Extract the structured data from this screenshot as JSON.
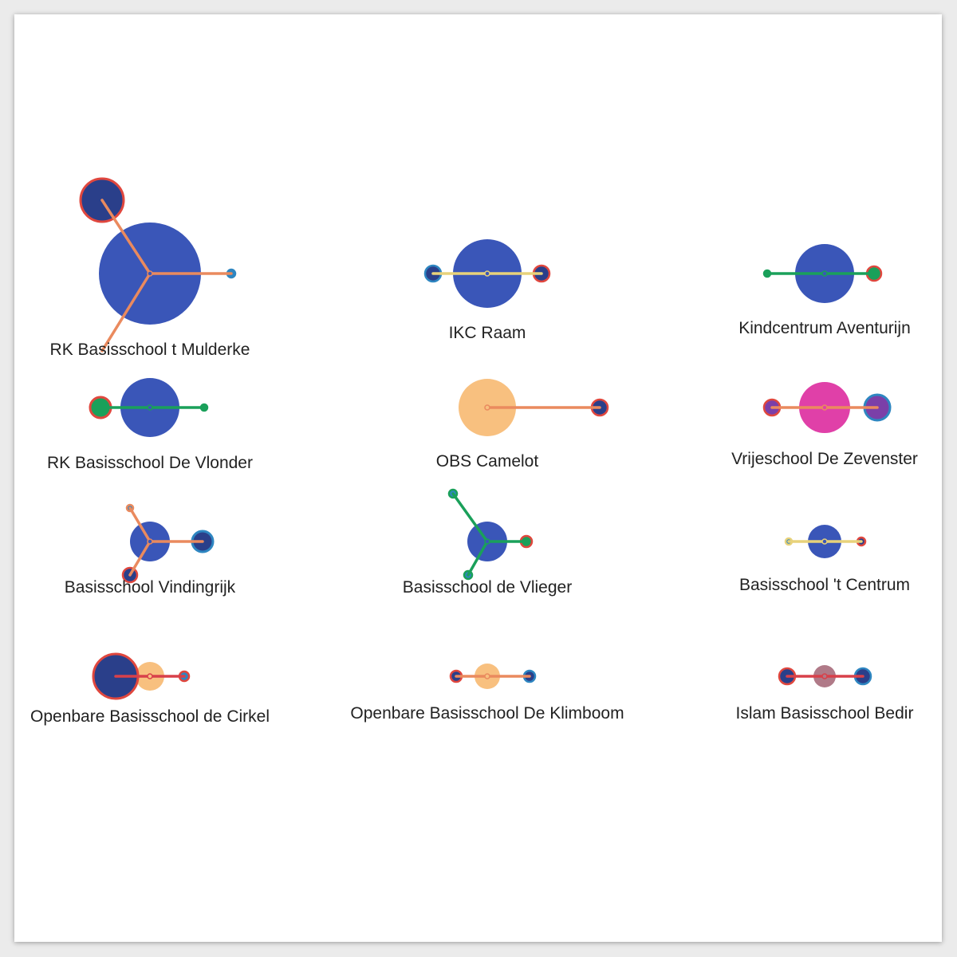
{
  "schools": [
    {
      "name": "RK Basisschool t Mulderke",
      "main_color": "#3a56b8",
      "nodes": [
        {
          "fill": "#2a3f8a",
          "stroke": "#e0473e",
          "edge": "#ea8a5e"
        },
        {
          "fill": "#2e86c1",
          "stroke": "#2e86c1",
          "edge": "#ea8a5e"
        },
        {
          "fill": "#3a56b8",
          "stroke": "#3a56b8",
          "edge": "#ea8a5e"
        }
      ]
    },
    {
      "name": "IKC Raam",
      "main_color": "#3a56b8",
      "nodes": [
        {
          "fill": "#2a3f8a",
          "stroke": "#2e86c1",
          "edge": "#e8d27a"
        },
        {
          "fill": "#2a3f8a",
          "stroke": "#e0473e",
          "edge": "#e8d27a"
        }
      ]
    },
    {
      "name": "Kindcentrum Aventurijn",
      "main_color": "#3a56b8",
      "nodes": [
        {
          "fill": "#1aa05a",
          "stroke": "#1aa05a",
          "edge": "#1aa05a"
        },
        {
          "fill": "#1aa05a",
          "stroke": "#e0473e",
          "edge": "#1aa05a"
        }
      ]
    },
    {
      "name": "RK Basisschool De Vlonder",
      "main_color": "#3a56b8",
      "nodes": [
        {
          "fill": "#1aa05a",
          "stroke": "#e0473e",
          "edge": "#1aa05a"
        },
        {
          "fill": "#1aa05a",
          "stroke": "#1aa05a",
          "edge": "#1aa05a"
        }
      ]
    },
    {
      "name": "OBS Camelot",
      "main_color": "#f8c07f",
      "nodes": [
        {
          "fill": "#2a3f8a",
          "stroke": "#e0473e",
          "edge": "#ea8a5e"
        }
      ]
    },
    {
      "name": "Vrijeschool De Zevenster",
      "main_color": "#e040a8",
      "nodes": [
        {
          "fill": "#7b3fa8",
          "stroke": "#e0473e",
          "edge": "#ea8a5e"
        },
        {
          "fill": "#7b3fa8",
          "stroke": "#2e86c1",
          "edge": "#ea8a5e"
        }
      ]
    },
    {
      "name": "Basisschool Vindingrijk",
      "main_color": "#3a56b8",
      "nodes": [
        {
          "fill": "#2e86c1",
          "stroke": "#ea8a5e",
          "edge": "#ea8a5e"
        },
        {
          "fill": "#2a3f8a",
          "stroke": "#2e86c1",
          "edge": "#ea8a5e"
        },
        {
          "fill": "#2a3f8a",
          "stroke": "#e0473e",
          "edge": "#ea8a5e"
        }
      ]
    },
    {
      "name": "Basisschool de Vlieger",
      "main_color": "#3a56b8",
      "nodes": [
        {
          "fill": "#2e86c1",
          "stroke": "#1aa05a",
          "edge": "#1aa05a"
        },
        {
          "fill": "#1aa05a",
          "stroke": "#e0473e",
          "edge": "#1aa05a"
        },
        {
          "fill": "#2e86c1",
          "stroke": "#1aa05a",
          "edge": "#1aa05a"
        }
      ]
    },
    {
      "name": "Basisschool 't Centrum",
      "main_color": "#3a56b8",
      "nodes": [
        {
          "fill": "#2e86c1",
          "stroke": "#e8d27a",
          "edge": "#e8d27a"
        },
        {
          "fill": "#2a3f8a",
          "stroke": "#e0473e",
          "edge": "#e8d27a"
        }
      ]
    },
    {
      "name": "Openbare Basisschool de Cirkel",
      "main_color": "#f8c07f",
      "nodes": [
        {
          "fill": "#2a3f8a",
          "stroke": "#e0473e",
          "edge": "#d8404a"
        },
        {
          "fill": "#2e86c1",
          "stroke": "#e0473e",
          "edge": "#d8404a"
        }
      ]
    },
    {
      "name": "Openbare Basisschool De Klimboom",
      "main_color": "#f8c07f",
      "nodes": [
        {
          "fill": "#2a3f8a",
          "stroke": "#e0473e",
          "edge": "#ea8a5e"
        },
        {
          "fill": "#2a3f8a",
          "stroke": "#2e86c1",
          "edge": "#ea8a5e"
        }
      ]
    },
    {
      "name": "Islam Basisschool Bedir",
      "main_color": "#b07a88",
      "nodes": [
        {
          "fill": "#2a3f8a",
          "stroke": "#e0473e",
          "edge": "#d8404a"
        },
        {
          "fill": "#2a3f8a",
          "stroke": "#2e86c1",
          "edge": "#d8404a"
        }
      ]
    }
  ]
}
